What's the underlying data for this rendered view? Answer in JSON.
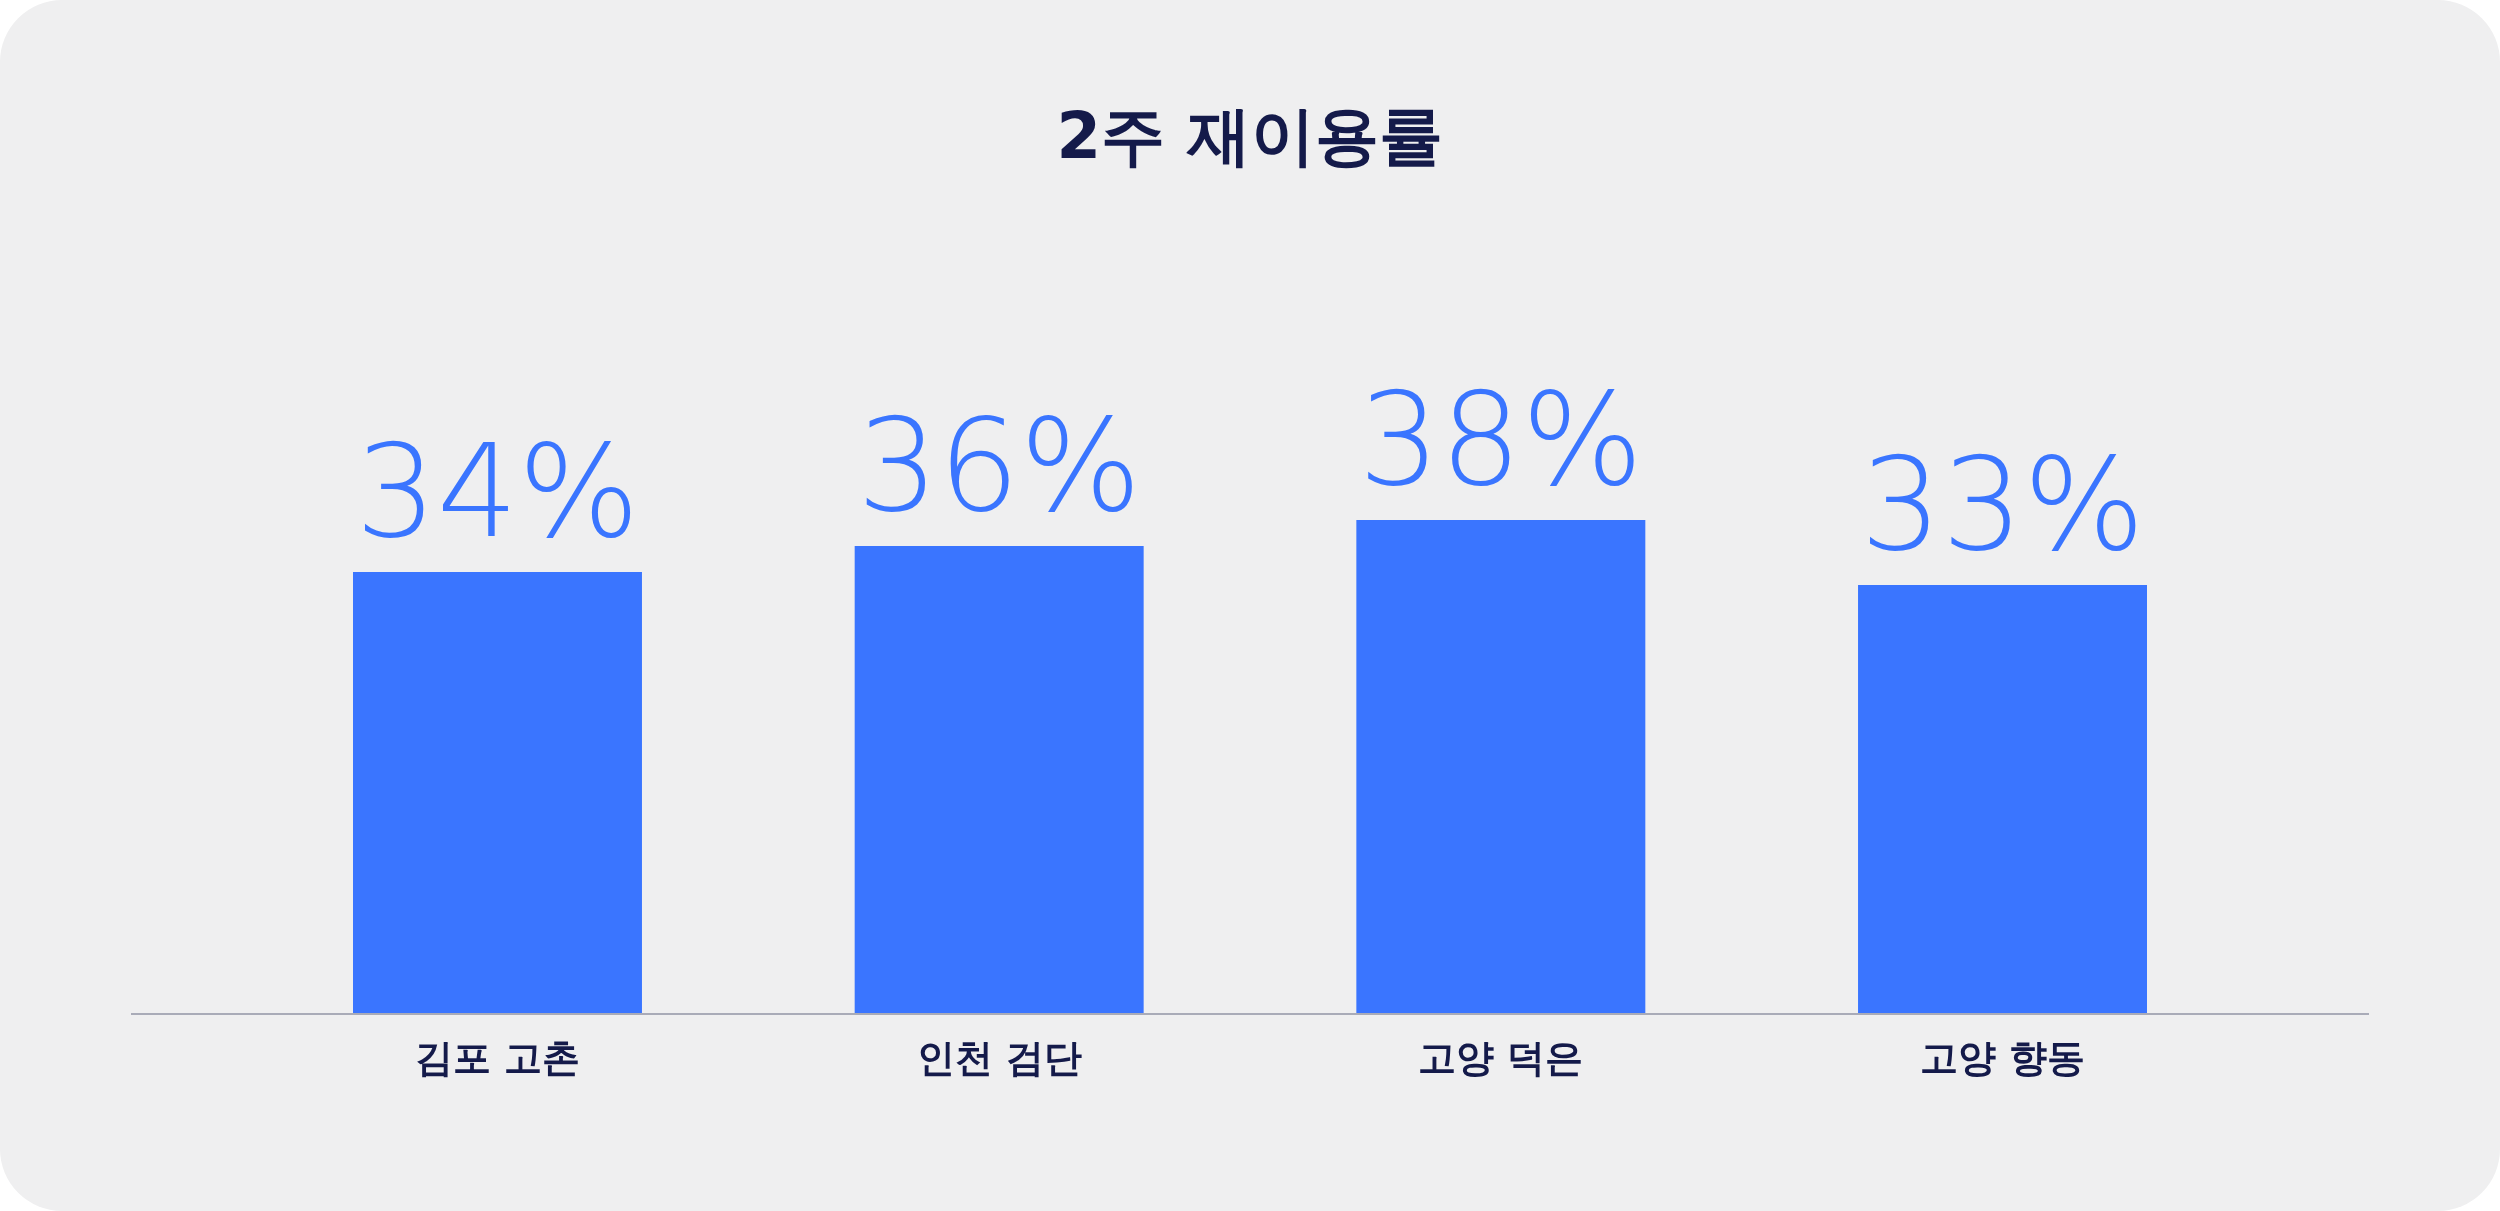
{
  "chart_data": {
    "type": "bar",
    "title": "2주 재이용률",
    "categories": [
      "김포 고촌",
      "인천 검단",
      "고양 덕은",
      "고양 향동"
    ],
    "values": [
      34,
      36,
      38,
      33
    ],
    "value_labels": [
      "34%",
      "36%",
      "38%",
      "33%"
    ],
    "color": "#3a75ff"
  }
}
